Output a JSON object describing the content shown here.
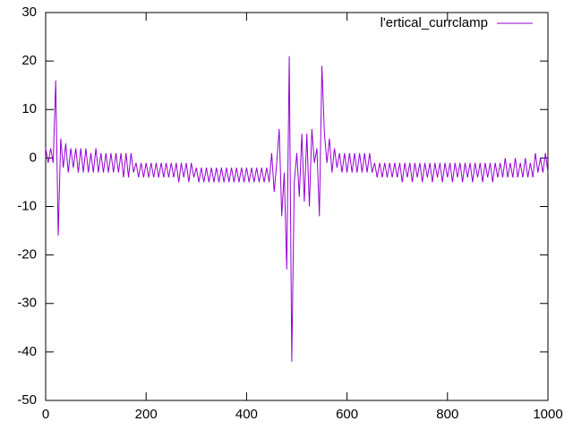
{
  "chart_data": {
    "type": "line",
    "x": [
      0,
      5,
      10,
      15,
      20,
      25,
      30,
      35,
      40,
      45,
      50,
      55,
      60,
      65,
      70,
      75,
      80,
      85,
      90,
      95,
      100,
      105,
      110,
      115,
      120,
      125,
      130,
      135,
      140,
      145,
      150,
      155,
      160,
      165,
      170,
      175,
      180,
      185,
      190,
      195,
      200,
      205,
      210,
      215,
      220,
      225,
      230,
      235,
      240,
      245,
      250,
      255,
      260,
      265,
      270,
      275,
      280,
      285,
      290,
      295,
      300,
      305,
      310,
      315,
      320,
      325,
      330,
      335,
      340,
      345,
      350,
      355,
      360,
      365,
      370,
      375,
      380,
      385,
      390,
      395,
      400,
      405,
      410,
      415,
      420,
      425,
      430,
      435,
      440,
      445,
      450,
      455,
      460,
      465,
      470,
      475,
      480,
      485,
      490,
      495,
      500,
      505,
      510,
      515,
      520,
      525,
      530,
      535,
      540,
      545,
      550,
      555,
      560,
      565,
      570,
      575,
      580,
      585,
      590,
      595,
      600,
      605,
      610,
      615,
      620,
      625,
      630,
      635,
      640,
      645,
      650,
      655,
      660,
      665,
      670,
      675,
      680,
      685,
      690,
      695,
      700,
      705,
      710,
      715,
      720,
      725,
      730,
      735,
      740,
      745,
      750,
      755,
      760,
      765,
      770,
      775,
      780,
      785,
      790,
      795,
      800,
      805,
      810,
      815,
      820,
      825,
      830,
      835,
      840,
      845,
      850,
      855,
      860,
      865,
      870,
      875,
      880,
      885,
      890,
      895,
      900,
      905,
      910,
      915,
      920,
      925,
      930,
      935,
      940,
      945,
      950,
      955,
      960,
      965,
      970,
      975,
      980,
      985,
      990,
      995,
      1000
    ],
    "series": [
      {
        "name": "l'ertical_currclamp",
        "color": "#9400d3",
        "values": [
          2,
          -1,
          2,
          -1,
          16,
          -16,
          4,
          -2,
          3,
          -3,
          2,
          -2,
          2,
          -3,
          2,
          -3,
          2,
          -3,
          1,
          -3,
          2,
          -3,
          1,
          -3,
          1,
          -3,
          1,
          -3,
          1,
          -3,
          1,
          -4,
          1,
          -4,
          1,
          -3,
          -1,
          -4,
          -1,
          -4,
          -1,
          -4,
          -1,
          -4,
          -1,
          -4,
          -1,
          -4,
          -1,
          -4,
          -1,
          -4,
          -1,
          -5,
          -1,
          -4,
          -1,
          -5,
          -1,
          -4,
          -2,
          -5,
          -2,
          -5,
          -2,
          -5,
          -2,
          -5,
          -2,
          -5,
          -2,
          -5,
          -2,
          -5,
          -2,
          -5,
          -2,
          -5,
          -2,
          -5,
          -2,
          -5,
          -2,
          -5,
          -2,
          -5,
          -2,
          -5,
          -2,
          -5,
          1,
          -7,
          -1,
          6,
          -12,
          -3,
          -23,
          21,
          -42,
          -5,
          1,
          -8,
          5,
          -9,
          5,
          -10,
          6,
          -1,
          2,
          -12,
          19,
          5,
          -1,
          4,
          -3,
          2,
          -2,
          1,
          -3,
          1,
          -3,
          1,
          -3,
          1,
          -3,
          1,
          -3,
          1,
          -3,
          1,
          -3,
          -1,
          -4,
          -1,
          -4,
          -1,
          -4,
          -1,
          -4,
          -1,
          -4,
          -1,
          -5,
          -1,
          -4,
          -1,
          -5,
          -1,
          -4,
          -1,
          -5,
          -1,
          -4,
          -1,
          -5,
          -1,
          -4,
          -1,
          -5,
          -1,
          -4,
          -1,
          -5,
          -1,
          -4,
          -1,
          -5,
          -1,
          -4,
          -1,
          -5,
          -1,
          -4,
          -1,
          -5,
          -1,
          -4,
          -1,
          -5,
          -1,
          -4,
          -1,
          -4,
          0,
          -4,
          -1,
          -4,
          0,
          -4,
          -1,
          -4,
          0,
          -4,
          -1,
          -4,
          1,
          -3,
          0,
          -3,
          1,
          -3
        ]
      }
    ],
    "xlim": [
      0,
      1000
    ],
    "xticks": [
      0,
      200,
      400,
      600,
      800,
      1000
    ],
    "ylim": [
      -50,
      30
    ],
    "yticks": [
      -50,
      -40,
      -30,
      -20,
      -10,
      0,
      10,
      20,
      30
    ],
    "legend": "top-right"
  }
}
